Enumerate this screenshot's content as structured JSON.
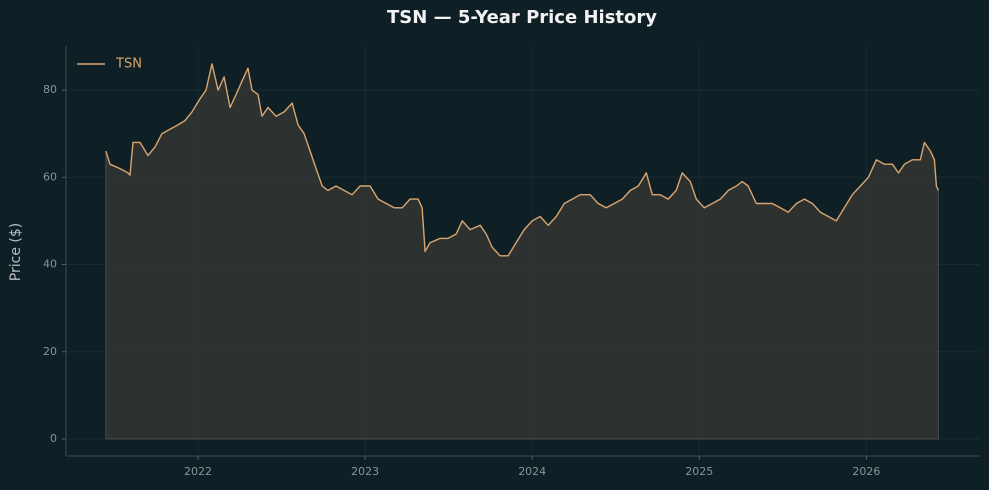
{
  "chart_data": {
    "type": "line",
    "title": "TSN — 5-Year Price History",
    "ylabel": "Price ($)",
    "x": [
      2021.449,
      2021.473,
      2021.533,
      2021.581,
      2021.593,
      2021.611,
      2021.653,
      2021.701,
      2021.743,
      2021.784,
      2021.832,
      2021.88,
      2021.922,
      2021.964,
      2022.012,
      2022.048,
      2022.084,
      2022.12,
      2022.156,
      2022.192,
      2022.228,
      2022.263,
      2022.299,
      2022.323,
      2022.359,
      2022.383,
      2022.419,
      2022.467,
      2022.515,
      2022.563,
      2022.599,
      2022.635,
      2022.671,
      2022.707,
      2022.743,
      2022.778,
      2022.826,
      2022.874,
      2022.922,
      2022.97,
      2023.03,
      2023.078,
      2023.126,
      2023.174,
      2023.222,
      2023.269,
      2023.317,
      2023.341,
      2023.359,
      2023.389,
      2023.449,
      2023.497,
      2023.545,
      2023.581,
      2023.629,
      2023.689,
      2023.725,
      2023.76,
      2023.808,
      2023.856,
      2023.904,
      2023.952,
      2024.0,
      2024.048,
      2024.096,
      2024.144,
      2024.192,
      2024.24,
      2024.287,
      2024.347,
      2024.395,
      2024.443,
      2024.491,
      2024.539,
      2024.587,
      2024.635,
      2024.683,
      2024.719,
      2024.766,
      2024.814,
      2024.862,
      2024.898,
      2024.946,
      2024.982,
      2025.03,
      2025.078,
      2025.126,
      2025.174,
      2025.222,
      2025.257,
      2025.293,
      2025.341,
      2025.389,
      2025.437,
      2025.485,
      2025.533,
      2025.581,
      2025.629,
      2025.677,
      2025.725,
      2025.772,
      2025.82,
      2025.868,
      2025.916,
      2025.964,
      2026.012,
      2026.06,
      2026.108,
      2026.156,
      2026.192,
      2026.228,
      2026.275,
      2026.323,
      2026.347,
      2026.383,
      2026.407,
      2026.419,
      2026.431
    ],
    "series": [
      {
        "name": "TSN",
        "color": "#d9a56e",
        "values": [
          66,
          63,
          62,
          61,
          60.5,
          68,
          68,
          65,
          67,
          70,
          71,
          72,
          73,
          75,
          78,
          80,
          86,
          80,
          83,
          76,
          79,
          82,
          85,
          80,
          79,
          74,
          76,
          74,
          75,
          77,
          72,
          70,
          66,
          62,
          58,
          57,
          58,
          57,
          56,
          58,
          58,
          55,
          54,
          53,
          53,
          55,
          55,
          53,
          43,
          45,
          46,
          46,
          47,
          50,
          48,
          49,
          47,
          44,
          42,
          42,
          45,
          48,
          50,
          51,
          49,
          51,
          54,
          55,
          56,
          56,
          54,
          53,
          54,
          55,
          57,
          58,
          61,
          56,
          56,
          55,
          57,
          61,
          59,
          55,
          53,
          54,
          55,
          57,
          58,
          59,
          58,
          54,
          54,
          54,
          53,
          52,
          54,
          55,
          54,
          52,
          51,
          50,
          53,
          56,
          58,
          60,
          64,
          63,
          63,
          61,
          63,
          64,
          64,
          68,
          66,
          64,
          58,
          57
        ]
      }
    ],
    "xlim": [
      2021.21,
      2026.68
    ],
    "xticks": [
      2022,
      2023,
      2024,
      2025,
      2026
    ],
    "ylim": [
      -3.9,
      90.1
    ],
    "yticks": [
      0,
      20,
      40,
      60,
      80
    ],
    "grid": true,
    "legend": "upper left"
  }
}
